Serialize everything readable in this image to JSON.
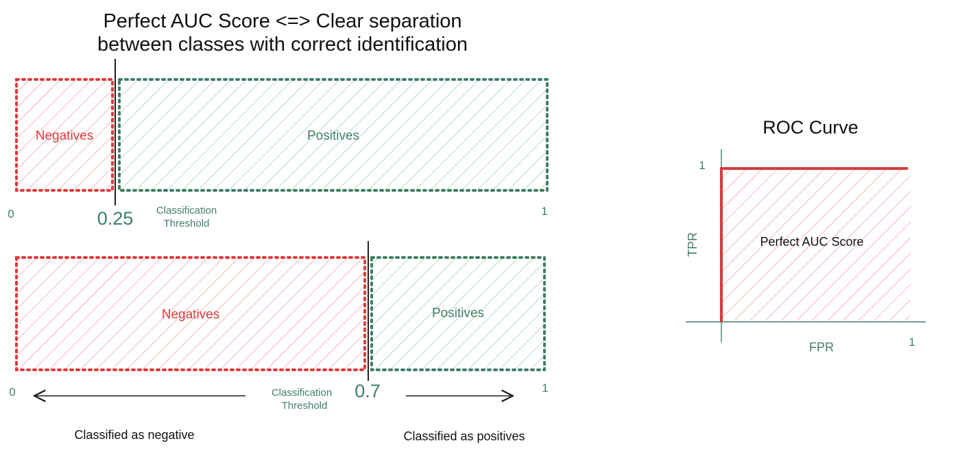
{
  "colors": {
    "negative": "#dd3b3b",
    "negative_fill": "#f4a6a6",
    "positive": "#3f7f64",
    "positive_fill": "#9fd6ae",
    "line": "#1f1f1f",
    "axis": "#3f7f64",
    "roc_curve": "#d23b3b",
    "text": "#111111"
  },
  "title": {
    "line1": "Perfect AUC Score <=> Clear separation",
    "line2": "between classes with correct identification"
  },
  "top_diagram": {
    "negatives_label": "Negatives",
    "positives_label": "Positives",
    "scale_start": "0",
    "scale_end": "1",
    "threshold_value": "0.25",
    "threshold_label_line1": "Classification",
    "threshold_label_line2": "Threshold"
  },
  "bottom_diagram": {
    "negatives_label": "Negatives",
    "positives_label": "Positives",
    "scale_start": "0",
    "scale_end": "1",
    "threshold_value": "0.7",
    "threshold_label_line1": "Classification",
    "threshold_label_line2": "Threshold",
    "classified_negative": "Classified as negative",
    "classified_positive": "Classified as positives"
  },
  "roc": {
    "title": "ROC Curve",
    "y_axis_label": "TPR",
    "x_axis_label": "FPR",
    "y_tick": "1",
    "x_tick": "1",
    "area_label": "Perfect AUC Score"
  }
}
